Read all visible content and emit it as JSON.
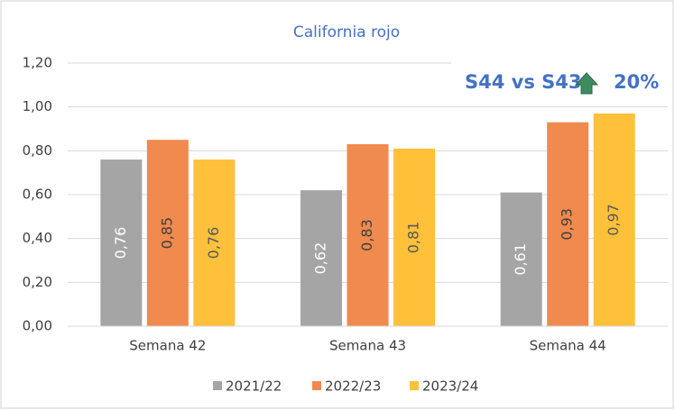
{
  "chart_data": {
    "type": "bar",
    "title": "California rojo",
    "categories": [
      "Semana 42",
      "Semana 43",
      "Semana 44"
    ],
    "series": [
      {
        "name": "2021/22",
        "color": "#a5a5a5",
        "values": [
          0.76,
          0.62,
          0.61
        ],
        "value_labels": [
          "0,76",
          "0,62",
          "0,61"
        ]
      },
      {
        "name": "2022/23",
        "color": "#f08a4e",
        "values": [
          0.85,
          0.83,
          0.93
        ],
        "value_labels": [
          "0,85",
          "0,83",
          "0,93"
        ]
      },
      {
        "name": "2023/24",
        "color": "#ffc03a",
        "values": [
          0.76,
          0.81,
          0.97
        ],
        "value_labels": [
          "0,76",
          "0,81",
          "0,97"
        ]
      }
    ],
    "ylim": [
      0,
      1.2
    ],
    "yticks": [
      {
        "value": 0,
        "label": "0,00"
      },
      {
        "value": 0.2,
        "label": "0,20"
      },
      {
        "value": 0.4,
        "label": "0,40"
      },
      {
        "value": 0.6,
        "label": "0,60"
      },
      {
        "value": 0.8,
        "label": "0,80"
      },
      {
        "value": 1.0,
        "label": "1,00"
      },
      {
        "value": 1.2,
        "label": "1,20"
      }
    ],
    "grid": true,
    "legend": "bottom",
    "annotations": [
      "S44 vs S43",
      "20%"
    ]
  }
}
